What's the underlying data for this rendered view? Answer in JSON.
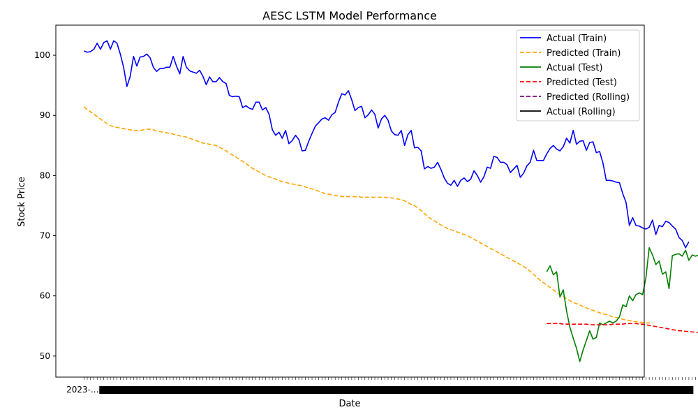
{
  "chart_data": {
    "type": "line",
    "title": "AESC LSTM Model Performance",
    "xlabel": "Date",
    "ylabel": "Stock Price",
    "ylim": [
      46.5,
      105
    ],
    "yticks": [
      50,
      60,
      70,
      80,
      90,
      100
    ],
    "xlim": [
      -8.5,
      169.5
    ],
    "grid": false,
    "legend_position": "top-right",
    "series": [
      {
        "name": "Actual (Train)",
        "color": "#0000ff",
        "style": "solid",
        "x_start": 0,
        "values": [
          100.7,
          100.5,
          100.6,
          101.0,
          102.0,
          101.0,
          102.1,
          102.4,
          101.0,
          102.4,
          102.0,
          100.2,
          98.0,
          94.8,
          96.5,
          99.8,
          98.2,
          99.7,
          99.8,
          100.2,
          99.6,
          98.0,
          97.3,
          97.8,
          97.8,
          98.0,
          98.0,
          99.8,
          98.2,
          96.9,
          99.8,
          98.0,
          97.4,
          97.2,
          97.0,
          97.5,
          96.5,
          95.1,
          96.4,
          95.6,
          95.6,
          96.3,
          95.6,
          95.3,
          93.3,
          93.1,
          93.2,
          93.1,
          91.3,
          91.6,
          91.2,
          91.0,
          92.2,
          92.2,
          90.9,
          91.3,
          90.2,
          87.6,
          86.7,
          87.2,
          86.2,
          87.5,
          85.3,
          85.8,
          86.7,
          86.0,
          84.1,
          84.2,
          85.7,
          87.0,
          88.2,
          88.8,
          89.4,
          89.6,
          89.2,
          90.1,
          90.5,
          92.2,
          93.6,
          93.4,
          94.1,
          92.6,
          90.8,
          91.3,
          91.5,
          89.6,
          90.1,
          90.9,
          90.2,
          87.9,
          89.4,
          90.0,
          89.2,
          87.4,
          86.8,
          86.7,
          87.5,
          85.0,
          86.8,
          87.5,
          84.6,
          84.7,
          84.1,
          81.1,
          81.5,
          81.2,
          81.4,
          82.2,
          81.0,
          79.6,
          78.7,
          78.4,
          79.2,
          78.2,
          79.2,
          79.6,
          79.0,
          79.4,
          80.8,
          80.0,
          78.9,
          79.8,
          81.4,
          81.2,
          83.2,
          83.0,
          82.2,
          82.2,
          81.8,
          80.5,
          81.1,
          81.7,
          79.7,
          80.4,
          81.6,
          82.2,
          84.2,
          82.5,
          82.5,
          82.5,
          83.6,
          84.5,
          85.0,
          84.4,
          84.1,
          84.8,
          86.2,
          85.4,
          87.5,
          85.2,
          85.7,
          85.8,
          84.2,
          85.5,
          85.6,
          83.8,
          84.0,
          82.1,
          79.2,
          79.2,
          79.1,
          78.9,
          78.8,
          77.0,
          75.5,
          71.7,
          73.0,
          71.7,
          71.6,
          71.3,
          71.1,
          71.4,
          72.6,
          70.2,
          71.7,
          71.5,
          72.4,
          72.2,
          71.6,
          71.1,
          69.7,
          69.2,
          68.0,
          69.0
        ]
      },
      {
        "name": "Predicted (Train)",
        "color": "#ffa500",
        "style": "dashed",
        "x_start": 0,
        "values": [
          91.4,
          91.0,
          90.6,
          90.2,
          89.8,
          89.4,
          89.0,
          88.6,
          88.3,
          88.1,
          88.0,
          87.9,
          87.8,
          87.7,
          87.6,
          87.5,
          87.5,
          87.5,
          87.6,
          87.7,
          87.7,
          87.6,
          87.4,
          87.3,
          87.2,
          87.1,
          87.0,
          86.9,
          86.7,
          86.6,
          86.5,
          86.4,
          86.2,
          86.0,
          85.8,
          85.6,
          85.4,
          85.3,
          85.2,
          85.1,
          85.0,
          84.7,
          84.4,
          84.1,
          83.7,
          83.4,
          83.1,
          82.7,
          82.4,
          82.0,
          81.6,
          81.2,
          80.9,
          80.6,
          80.3,
          80.0,
          79.8,
          79.6,
          79.4,
          79.2,
          79.0,
          78.9,
          78.7,
          78.6,
          78.5,
          78.4,
          78.3,
          78.1,
          77.9,
          77.8,
          77.6,
          77.4,
          77.2,
          77.0,
          76.9,
          76.8,
          76.7,
          76.6,
          76.5,
          76.5,
          76.5,
          76.5,
          76.5,
          76.5,
          76.4,
          76.4,
          76.4,
          76.4,
          76.4,
          76.4,
          76.4,
          76.4,
          76.3,
          76.3,
          76.2,
          76.1,
          76.0,
          75.8,
          75.5,
          75.2,
          75.0,
          74.6,
          74.2,
          73.7,
          73.2,
          72.8,
          72.5,
          72.1,
          71.8,
          71.5,
          71.2,
          71.0,
          70.8,
          70.6,
          70.4,
          70.2,
          70.0,
          69.7,
          69.4,
          69.1,
          68.8,
          68.5,
          68.2,
          67.9,
          67.6,
          67.3,
          67.0,
          66.7,
          66.4,
          66.1,
          65.8,
          65.5,
          65.2,
          64.9,
          64.5,
          64.1,
          63.6,
          63.1,
          62.6,
          62.2,
          61.8,
          61.4,
          61.0,
          60.6,
          60.2,
          59.9,
          59.5,
          59.2,
          58.9,
          58.7,
          58.5,
          58.2,
          58.0,
          57.8,
          57.6,
          57.4,
          57.2,
          57.0,
          56.9,
          56.7,
          56.5,
          56.4,
          56.3,
          56.1,
          56.0,
          55.9,
          55.8,
          55.7,
          55.6,
          55.6,
          55.5,
          55.5,
          55.4
        ]
      },
      {
        "name": "Actual (Test)",
        "color": "#008000",
        "style": "solid",
        "x_start": 140,
        "values": [
          64.0,
          65.0,
          63.5,
          64.0,
          59.8,
          61.0,
          57.5,
          54.8,
          53.0,
          51.3,
          49.1,
          51.0,
          52.6,
          54.2,
          52.8,
          53.1,
          55.5,
          55.2,
          55.5,
          55.8,
          55.5,
          55.8,
          56.5,
          58.5,
          58.2,
          60.0,
          59.2,
          60.2,
          60.5,
          60.2,
          63.0,
          68.0,
          66.8,
          65.2,
          65.8,
          63.6,
          64.0,
          61.2,
          66.7,
          66.9,
          67.0,
          66.6,
          67.6,
          65.9,
          66.8,
          66.6,
          66.8,
          67.9,
          68.0,
          68.2
        ]
      },
      {
        "name": "Predicted (Test)",
        "color": "#ff0000",
        "style": "dashed",
        "x_start": 140,
        "values": [
          55.4,
          55.4,
          55.4,
          55.4,
          55.4,
          55.3,
          55.3,
          55.3,
          55.3,
          55.3,
          55.3,
          55.3,
          55.3,
          55.2,
          55.2,
          55.2,
          55.2,
          55.2,
          55.2,
          55.2,
          55.3,
          55.3,
          55.3,
          55.3,
          55.4,
          55.4,
          55.4,
          55.4,
          55.3,
          55.3,
          55.2,
          55.1,
          55.0,
          54.9,
          54.8,
          54.7,
          54.6,
          54.5,
          54.4,
          54.3,
          54.2,
          54.2,
          54.1,
          54.1,
          54.0,
          54.0,
          53.9,
          53.8,
          53.7,
          53.5
        ]
      },
      {
        "name": "Predicted (Rolling)",
        "color": "#800080",
        "style": "dashed",
        "x_start": 0,
        "values": []
      },
      {
        "name": "Actual (Rolling)",
        "color": "#000000",
        "style": "solid",
        "x_start": 0,
        "values": []
      }
    ],
    "x_tick_labels": [
      "2023-...",
      "",
      "2024-...",
      "",
      "202...0"
    ]
  }
}
